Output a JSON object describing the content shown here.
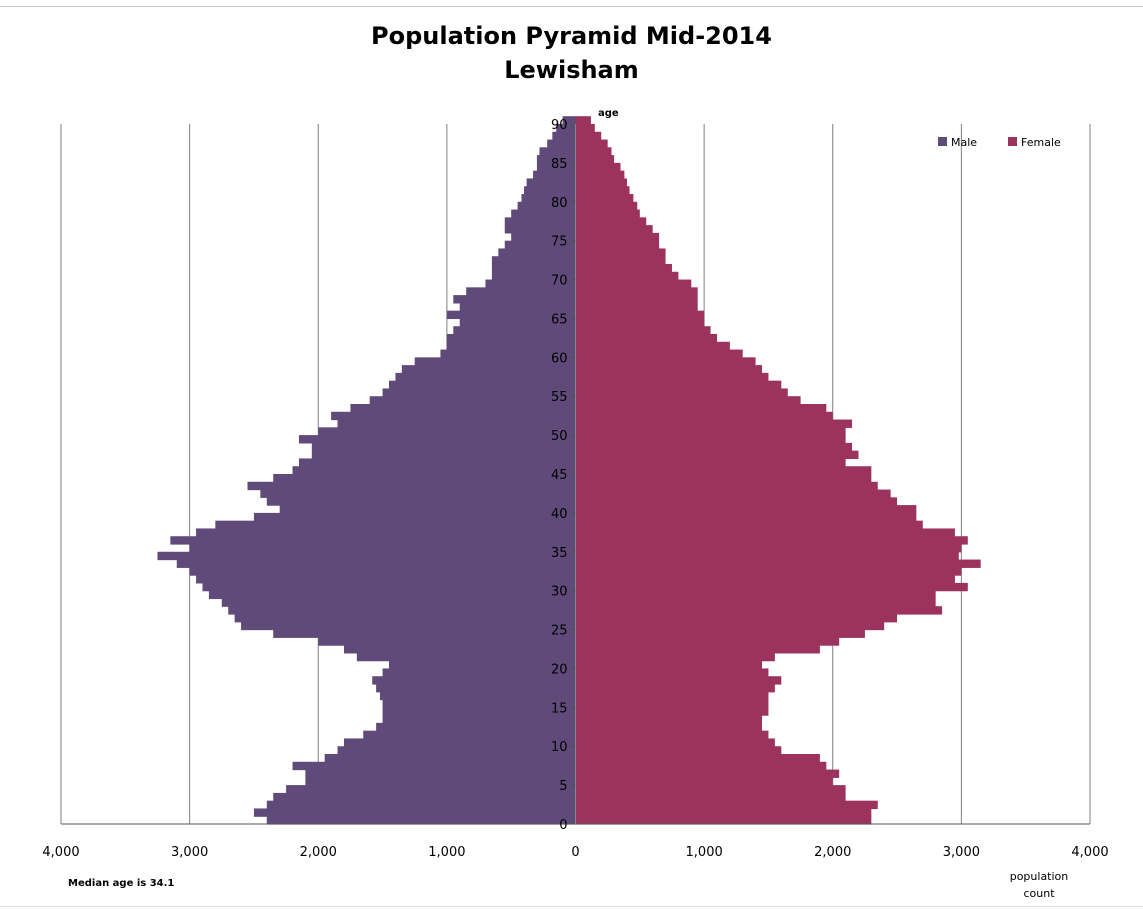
{
  "chart_data": {
    "type": "bar",
    "orientation": "horizontal",
    "title": "Population Pyramid Mid-2014",
    "subtitle": "Lewisham",
    "ylabel": "age",
    "xlabel": "population count",
    "note": "Median  age is 34.1",
    "xlim": [
      -4000,
      4000
    ],
    "ylim": [
      0,
      90
    ],
    "x_ticks": [
      -4000,
      -3000,
      -2000,
      -1000,
      0,
      1000,
      2000,
      3000,
      4000
    ],
    "x_tick_labels": [
      "4,000",
      "3,000",
      "2,000",
      "1,000",
      "0",
      "1,000",
      "2,000",
      "3,000",
      "4,000"
    ],
    "y_ticks": [
      0,
      5,
      10,
      15,
      20,
      25,
      30,
      35,
      40,
      45,
      50,
      55,
      60,
      65,
      70,
      75,
      80,
      85,
      90
    ],
    "grid": "vertical",
    "legend_position": "top-right",
    "categories": [
      0,
      1,
      2,
      3,
      4,
      5,
      6,
      7,
      8,
      9,
      10,
      11,
      12,
      13,
      14,
      15,
      16,
      17,
      18,
      19,
      20,
      21,
      22,
      23,
      24,
      25,
      26,
      27,
      28,
      29,
      30,
      31,
      32,
      33,
      34,
      35,
      36,
      37,
      38,
      39,
      40,
      41,
      42,
      43,
      44,
      45,
      46,
      47,
      48,
      49,
      50,
      51,
      52,
      53,
      54,
      55,
      56,
      57,
      58,
      59,
      60,
      61,
      62,
      63,
      64,
      65,
      66,
      67,
      68,
      69,
      70,
      71,
      72,
      73,
      74,
      75,
      76,
      77,
      78,
      79,
      80,
      81,
      82,
      83,
      84,
      85,
      86,
      87,
      88,
      89,
      90
    ],
    "series": [
      {
        "name": "Male",
        "color": "#5f4a7a",
        "values": [
          2400,
          2500,
          2400,
          2350,
          2250,
          2100,
          2100,
          2200,
          1950,
          1850,
          1800,
          1650,
          1550,
          1500,
          1500,
          1500,
          1520,
          1550,
          1580,
          1500,
          1450,
          1700,
          1800,
          2000,
          2350,
          2600,
          2650,
          2700,
          2750,
          2850,
          2900,
          2950,
          3000,
          3100,
          3250,
          3000,
          3150,
          2950,
          2800,
          2500,
          2300,
          2400,
          2450,
          2550,
          2350,
          2200,
          2150,
          2050,
          2050,
          2150,
          2000,
          1850,
          1900,
          1750,
          1600,
          1500,
          1450,
          1400,
          1350,
          1250,
          1050,
          1000,
          1000,
          950,
          900,
          1000,
          900,
          950,
          850,
          700,
          650,
          650,
          650,
          600,
          550,
          500,
          550,
          550,
          500,
          450,
          420,
          400,
          380,
          330,
          300,
          300,
          280,
          220,
          180,
          150,
          100
        ]
      },
      {
        "name": "Female",
        "color": "#9b335e",
        "values": [
          2300,
          2300,
          2350,
          2100,
          2100,
          2000,
          2050,
          1950,
          1900,
          1600,
          1550,
          1500,
          1450,
          1450,
          1500,
          1500,
          1500,
          1550,
          1600,
          1500,
          1450,
          1550,
          1900,
          2050,
          2250,
          2400,
          2500,
          2850,
          2800,
          2800,
          3050,
          2950,
          3000,
          3150,
          2980,
          3000,
          3050,
          2950,
          2700,
          2650,
          2650,
          2500,
          2450,
          2350,
          2300,
          2300,
          2100,
          2200,
          2150,
          2100,
          2100,
          2150,
          2000,
          1950,
          1750,
          1650,
          1600,
          1500,
          1450,
          1400,
          1300,
          1200,
          1100,
          1050,
          1000,
          1000,
          950,
          950,
          950,
          900,
          800,
          750,
          700,
          700,
          650,
          650,
          600,
          550,
          500,
          480,
          450,
          420,
          400,
          380,
          350,
          300,
          280,
          250,
          200,
          150,
          120
        ]
      }
    ]
  }
}
